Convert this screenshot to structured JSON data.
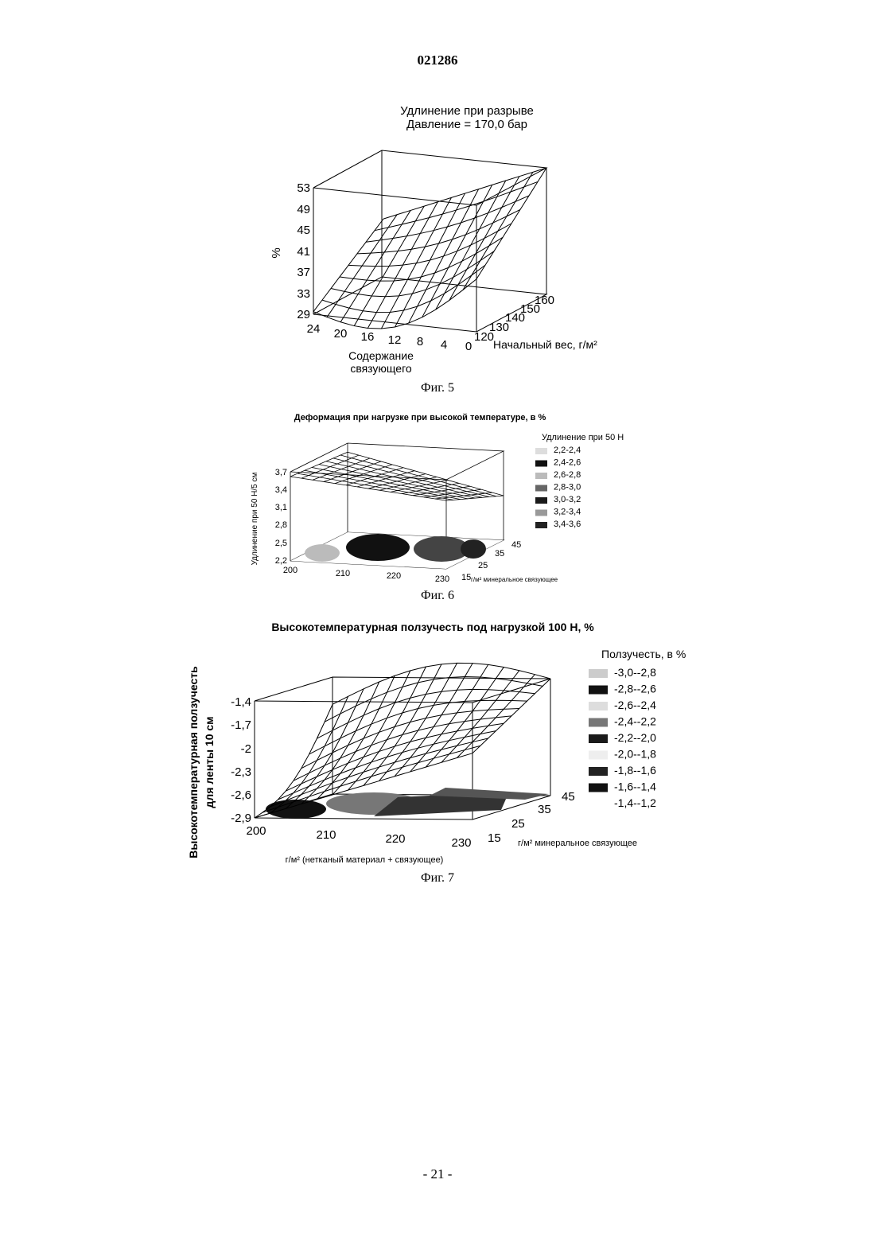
{
  "header": {
    "doc_number": "021286"
  },
  "footer": {
    "page_number": "- 21 -"
  },
  "figures": [
    {
      "caption": "Фиг. 5",
      "title_lines": [
        "Удлинение при разрыве",
        "Давление = 170,0 бар"
      ],
      "z_label": "%",
      "x_label_lines": [
        "Содержание",
        "связующего"
      ],
      "y_label": "Начальный вес, г/м²"
    },
    {
      "caption": "Фиг. 6",
      "title": "Деформация при нагрузке при высокой температуре, в %",
      "legend_title": "Удлинение при 50 Н",
      "z_label": "Удлинение при 50 Н/5 см",
      "y_label": "г/м² минеральное связующее"
    },
    {
      "caption": "Фиг. 7",
      "title": "Высокотемпературная ползучесть под нагрузкой 100 Н, %",
      "legend_title": "Ползучесть, в %",
      "z_label_lines": [
        "Высокотемпературная ползучесть",
        "для ленты 10 см"
      ],
      "x_label": "г/м² (нетканый материал + связующее)",
      "y_label": "г/м² минеральное связующее"
    }
  ],
  "chart_data": [
    {
      "type": "surface3d",
      "x_ticks": [
        "24",
        "20",
        "16",
        "12",
        "8",
        "4",
        "0"
      ],
      "y_ticks": [
        "120",
        "130",
        "140",
        "150",
        "160"
      ],
      "z_ticks": [
        "29",
        "33",
        "37",
        "41",
        "45",
        "49",
        "53"
      ],
      "x_range": [
        0,
        24
      ],
      "y_range": [
        120,
        160
      ],
      "z_range": [
        29,
        53
      ],
      "surface_corners": {
        "x24_y120": 29.5,
        "x0_y120": 39,
        "x24_y160": 40,
        "x0_y160": 53
      },
      "grid": true
    },
    {
      "type": "surface3d",
      "x_ticks": [
        "200",
        "210",
        "220",
        "230"
      ],
      "y_ticks": [
        "15",
        "25",
        "35",
        "45"
      ],
      "z_ticks": [
        "2,2",
        "2,5",
        "2,8",
        "3,1",
        "3,4",
        "3,7"
      ],
      "x_range": [
        200,
        230
      ],
      "y_range": [
        15,
        45
      ],
      "z_range": [
        2.2,
        3.7
      ],
      "legend": [
        "2,2-2,4",
        "2,4-2,6",
        "2,6-2,8",
        "2,8-3,0",
        "3,0-3,2",
        "3,2-3,4",
        "3,4-3,6"
      ],
      "surface_corners": {
        "x200_y15": 3.62,
        "x230_y15": 3.35,
        "x200_y45": 3.55,
        "x230_y45": 2.95
      },
      "grid": true
    },
    {
      "type": "surface3d",
      "x_ticks": [
        "200",
        "210",
        "220",
        "230"
      ],
      "y_ticks": [
        "15",
        "25",
        "35",
        "45"
      ],
      "z_ticks": [
        "-1,4",
        "-1,7",
        "-2",
        "-2,3",
        "-2,6",
        "-2,9"
      ],
      "x_range": [
        200,
        230
      ],
      "y_range": [
        15,
        45
      ],
      "z_range": [
        -2.9,
        -1.4
      ],
      "legend": [
        "-3,0--2,8",
        "-2,8--2,6",
        "-2,6--2,4",
        "-2,4--2,2",
        "-2,2--2,0",
        "-2,0--1,8",
        "-1,8--1,6",
        "-1,6--1,4",
        "-1,4--1,2"
      ],
      "surface_corners": {
        "x200_y15": -2.9,
        "x230_y15": -2.05,
        "x200_y45": -1.75,
        "x230_y45": -1.4
      },
      "grid": true
    }
  ]
}
